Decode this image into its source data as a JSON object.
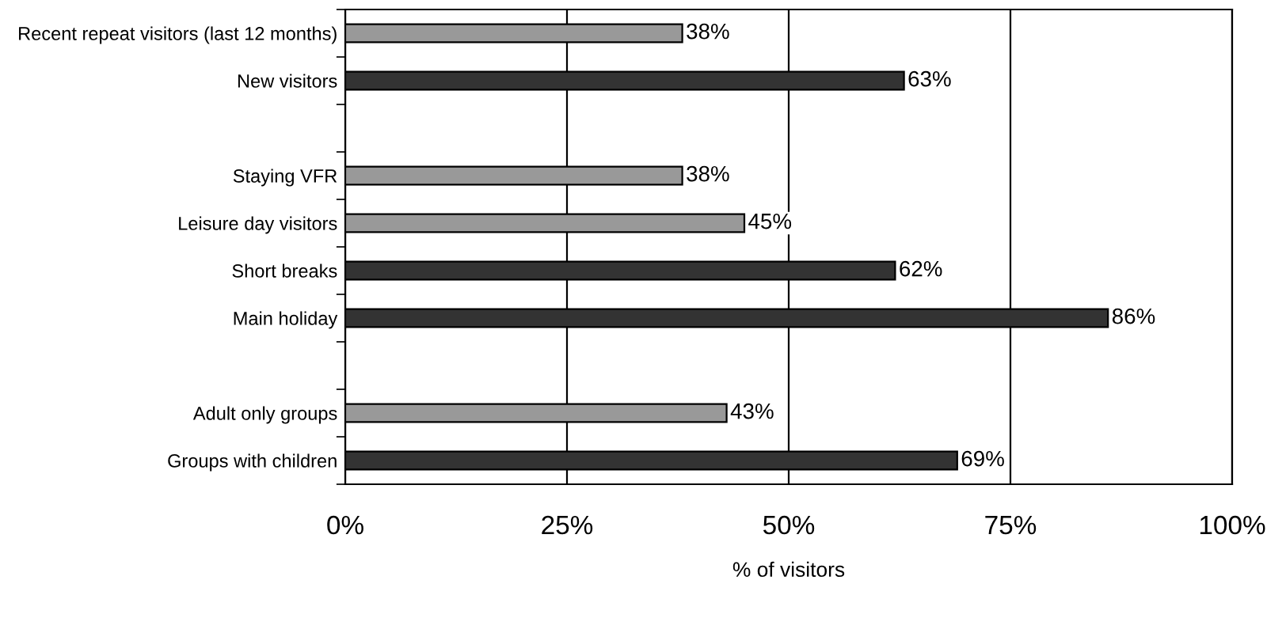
{
  "chart_data": {
    "type": "bar",
    "orientation": "horizontal",
    "xlabel": "% of visitors",
    "categories": [
      "Recent repeat visitors (last 12 months)",
      "New visitors",
      null,
      "Staying VFR",
      "Leisure day visitors",
      "Short breaks",
      "Main holiday",
      null,
      "Adult only groups",
      "Groups with children"
    ],
    "values": [
      38,
      63,
      null,
      38,
      45,
      62,
      86,
      null,
      43,
      69
    ],
    "colors": [
      "#999999",
      "#333333",
      null,
      "#999999",
      "#999999",
      "#333333",
      "#333333",
      null,
      "#999999",
      "#333333"
    ],
    "value_labels": [
      "38%",
      "63%",
      null,
      "38%",
      "45%",
      "62%",
      "86%",
      null,
      "43%",
      "69%"
    ],
    "xlim": [
      0,
      100
    ],
    "xticks": [
      {
        "value": 0,
        "label": "0%"
      },
      {
        "value": 25,
        "label": "25%"
      },
      {
        "value": 50,
        "label": "50%"
      },
      {
        "value": 75,
        "label": "75%"
      },
      {
        "value": 100,
        "label": "100%"
      }
    ],
    "grid": "x"
  }
}
